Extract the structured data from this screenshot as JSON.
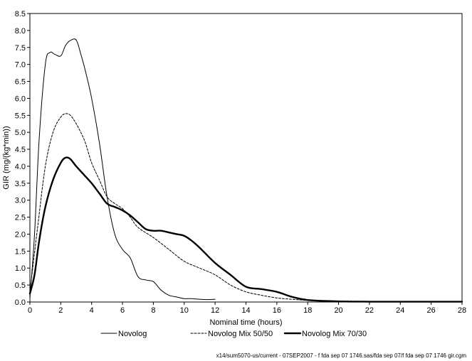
{
  "chart_data": {
    "type": "line",
    "xlabel": "Nominal time (hours)",
    "ylabel": "GIR (mg/(kg*min))",
    "xlim": [
      0,
      28
    ],
    "ylim": [
      0,
      8.5
    ],
    "x_ticks": [
      0,
      2,
      4,
      6,
      8,
      10,
      12,
      14,
      16,
      18,
      20,
      22,
      24,
      26,
      28
    ],
    "x_tick_labels": [
      "0",
      "2",
      "4",
      "6",
      "8",
      "10",
      "12",
      "14",
      "16",
      "18",
      "20",
      "22",
      "24",
      "26",
      "28"
    ],
    "y_ticks": [
      0,
      0.5,
      1,
      1.5,
      2,
      2.5,
      3,
      3.5,
      4,
      4.5,
      5,
      5.5,
      6,
      6.5,
      7,
      7.5,
      8,
      8.5
    ],
    "y_tick_labels": [
      "0.0",
      "0.5",
      "1.0",
      "1.5",
      "2.0",
      "2.5",
      "3.0",
      "3.5",
      "4.0",
      "4.5",
      "5.0",
      "5.5",
      "6.0",
      "6.5",
      "7.0",
      "7.5",
      "8.0",
      "8.5"
    ],
    "grid": false,
    "legend_position": "bottom",
    "series": [
      {
        "name": "Novolog",
        "style": "solid",
        "weight": "thin",
        "color": "#000000",
        "x": [
          0,
          0.3,
          0.6,
          1.0,
          1.3,
          1.6,
          2.0,
          2.3,
          2.6,
          3.0,
          3.3,
          3.6,
          4.0,
          4.5,
          5.0,
          5.5,
          6.0,
          6.5,
          7.0,
          7.5,
          8.0,
          8.5,
          9.0,
          9.5,
          10.0,
          10.5,
          11.0,
          11.5,
          12.0
        ],
        "y": [
          0.1,
          2.0,
          4.8,
          7.0,
          7.35,
          7.3,
          7.25,
          7.55,
          7.7,
          7.72,
          7.3,
          6.8,
          6.0,
          4.7,
          3.1,
          2.0,
          1.55,
          1.3,
          0.75,
          0.65,
          0.6,
          0.35,
          0.2,
          0.15,
          0.1,
          0.1,
          0.08,
          0.07,
          0.08
        ]
      },
      {
        "name": "Novolog Mix 50/50",
        "style": "dashed",
        "weight": "thin",
        "color": "#000000",
        "x": [
          0,
          0.5,
          1.0,
          1.5,
          2.0,
          2.4,
          2.8,
          3.5,
          4.0,
          4.5,
          5.0,
          5.5,
          6.0,
          6.5,
          7.0,
          8.0,
          9.0,
          10.0,
          11.0,
          12.0,
          13.0,
          14.0,
          15.0,
          16.0,
          17.0,
          18.0,
          20.0,
          22.0,
          24.0,
          26.0,
          28.0
        ],
        "y": [
          0.3,
          2.2,
          4.0,
          5.0,
          5.45,
          5.55,
          5.4,
          4.8,
          4.1,
          3.6,
          3.1,
          2.9,
          2.75,
          2.5,
          2.2,
          1.9,
          1.55,
          1.2,
          1.0,
          0.8,
          0.5,
          0.3,
          0.2,
          0.12,
          0.08,
          0.05,
          0.03,
          0.02,
          0.01,
          0.01,
          0.01
        ]
      },
      {
        "name": "Novolog Mix 70/30",
        "style": "solid",
        "weight": "thick",
        "color": "#000000",
        "x": [
          0,
          0.3,
          0.6,
          1.0,
          1.5,
          2.0,
          2.3,
          2.6,
          3.0,
          3.5,
          4.0,
          4.5,
          5.0,
          5.5,
          6.0,
          6.5,
          7.0,
          7.5,
          8.0,
          8.5,
          9.0,
          9.5,
          10.0,
          10.5,
          11.0,
          12.0,
          13.0,
          14.0,
          15.0,
          16.0,
          17.0,
          18.0,
          20.0,
          22.0,
          24.0,
          26.0,
          28.0
        ],
        "y": [
          0.25,
          0.8,
          1.8,
          2.8,
          3.6,
          4.1,
          4.25,
          4.22,
          4.0,
          3.75,
          3.5,
          3.2,
          2.9,
          2.8,
          2.7,
          2.55,
          2.35,
          2.15,
          2.1,
          2.1,
          2.05,
          2.0,
          1.95,
          1.8,
          1.6,
          1.15,
          0.8,
          0.45,
          0.38,
          0.3,
          0.15,
          0.06,
          0.02,
          0.01,
          0.01,
          0.01,
          0.01
        ]
      }
    ]
  },
  "footnote": "x14/sum5070-us/current - 07SEP2007 - f  fda  sep  07  1746.sas/fda  sep  07/f  fda  sep  07  1746  gir.cgm"
}
